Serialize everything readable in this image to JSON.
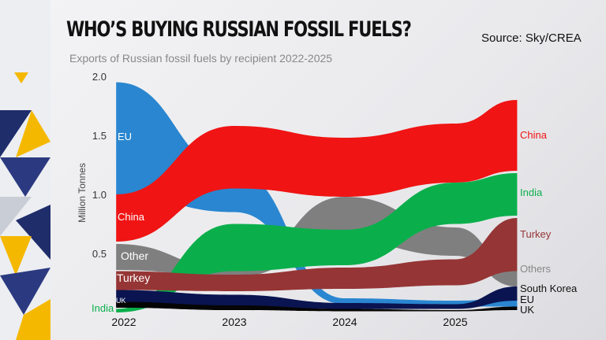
{
  "title": "WHO’S BUYING RUSSIAN FOSSIL FUELS?",
  "source": "Source: Sky/CREA",
  "subtitle": "Exports of Russian fossil fuels by recipient 2022-2025",
  "chart_data": {
    "type": "area",
    "title": "WHO’S BUYING RUSSIAN FOSSIL FUELS?",
    "ylabel": "Million Tonnes",
    "xlabel": "",
    "ylim": [
      0,
      2.0
    ],
    "yticks": [
      "0.5",
      "1.0",
      "1.5",
      "2.0"
    ],
    "ytick_values": [
      0.5,
      1.0,
      1.5,
      2.0
    ],
    "xticks": [
      "2022",
      "2023",
      "2024",
      "2025"
    ],
    "xtick_values": [
      2022,
      2023,
      2024,
      2025
    ],
    "x": [
      2021.93,
      2023,
      2024,
      2025,
      2025.56
    ],
    "series": [
      {
        "name": "Other",
        "start_label": "Other",
        "end_label": "Others",
        "color": "#7f7f7f",
        "top": [
          0.58,
          0.36,
          0.98,
          0.72,
          0.35
        ],
        "bottom": [
          0.36,
          0.3,
          0.6,
          0.48,
          0.22
        ]
      },
      {
        "name": "EU",
        "start_label": "EU",
        "end_label": "EU",
        "color": "#2a86d0",
        "top": [
          1.95,
          1.2,
          0.12,
          0.1,
          0.12
        ],
        "bottom": [
          1.0,
          0.85,
          0.07,
          0.05,
          0.05
        ]
      },
      {
        "name": "China",
        "start_label": "China",
        "end_label": "China",
        "color": "#f01414",
        "top": [
          1.0,
          1.58,
          1.48,
          1.6,
          1.8
        ],
        "bottom": [
          0.6,
          1.05,
          0.98,
          1.1,
          1.2
        ]
      },
      {
        "name": "India",
        "start_label": "India",
        "end_label": "India",
        "color": "#0aaf4b",
        "top": [
          0.03,
          0.75,
          0.7,
          1.1,
          1.18
        ],
        "bottom": [
          0.0,
          0.35,
          0.4,
          0.75,
          0.82
        ]
      },
      {
        "name": "Turkey",
        "start_label": "Turkey",
        "end_label": "Turkey",
        "color": "#963535",
        "top": [
          0.35,
          0.32,
          0.38,
          0.45,
          0.8
        ],
        "bottom": [
          0.19,
          0.18,
          0.2,
          0.23,
          0.35
        ]
      },
      {
        "name": "South Korea",
        "start_label": "",
        "end_label": "South Korea",
        "color": "#0a1450",
        "top": [
          0.19,
          0.15,
          0.08,
          0.07,
          0.22
        ],
        "bottom": [
          0.05,
          0.05,
          0.03,
          0.03,
          0.1
        ]
      },
      {
        "name": "UK",
        "start_label": "UK",
        "end_label": "UK",
        "color": "#050505",
        "top": [
          0.09,
          0.06,
          0.03,
          0.02,
          0.05
        ],
        "bottom": [
          0.04,
          0.02,
          0.01,
          0.01,
          0.02
        ]
      }
    ]
  }
}
